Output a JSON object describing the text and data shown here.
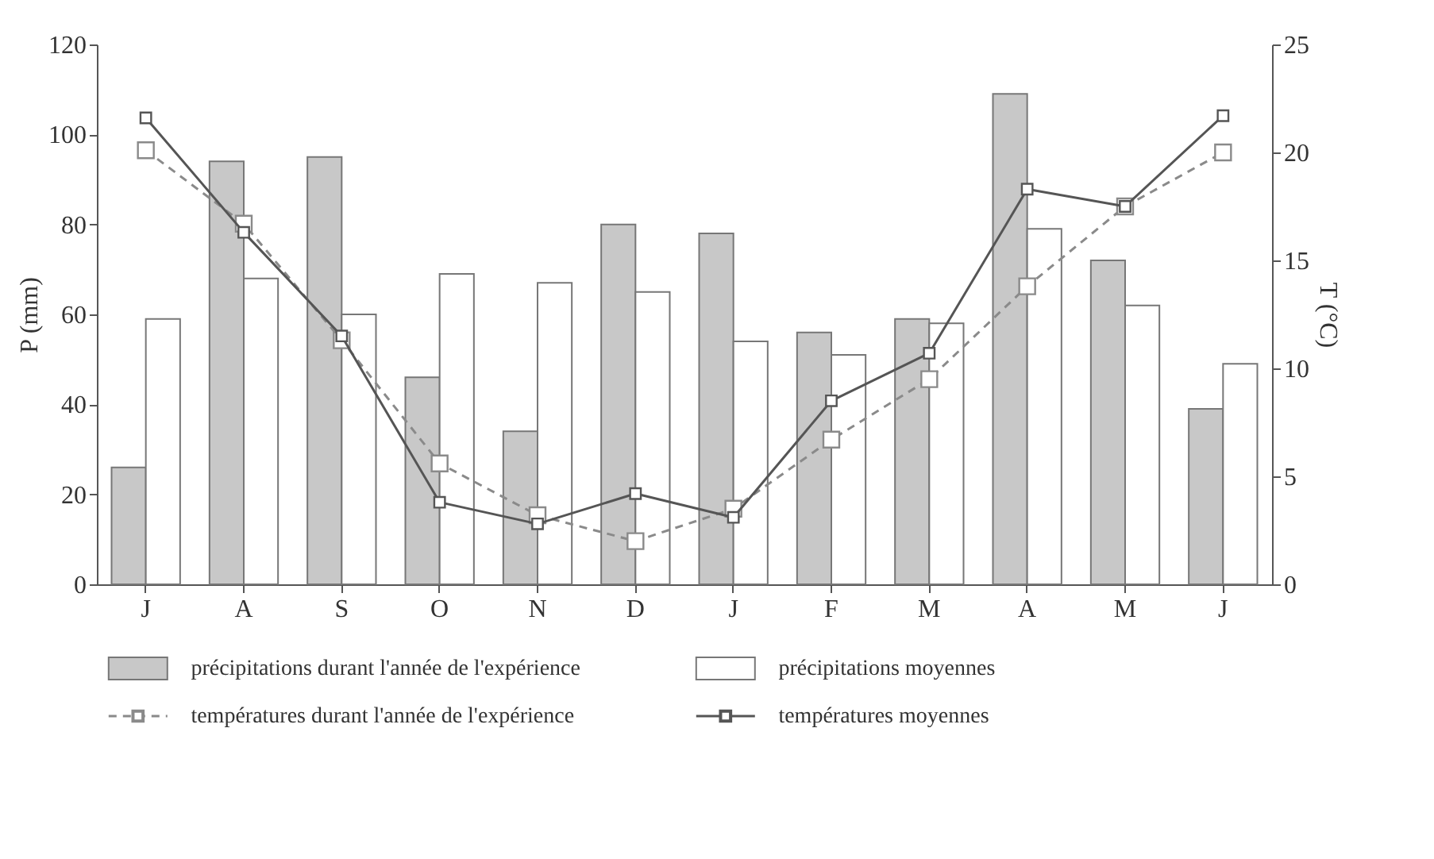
{
  "chart_data": {
    "type": "bar",
    "ylabel": "P (mm)",
    "y2label": "T (°C)",
    "categories": [
      "J",
      "A",
      "S",
      "O",
      "N",
      "D",
      "J",
      "F",
      "M",
      "A",
      "M",
      "J"
    ],
    "series": [
      {
        "name": "précipitations durant l'année de l'expérience",
        "color": "#c8c8c8",
        "values": [
          26,
          94,
          95,
          46,
          34,
          80,
          78,
          56,
          59,
          109,
          72,
          39
        ]
      },
      {
        "name": "précipitations moyennes",
        "color": "#ffffff",
        "values": [
          59,
          68,
          60,
          69,
          67,
          65,
          54,
          51,
          58,
          79,
          62,
          49
        ]
      },
      {
        "name": "températures durant l'année de l'expérience",
        "type": "line",
        "axis": "y2",
        "color": "#8a8a8a",
        "line_style": "dashed",
        "marker": "square",
        "values": [
          20.1,
          16.7,
          11.3,
          5.6,
          3.2,
          2.0,
          3.5,
          6.7,
          9.5,
          13.8,
          17.5,
          20.0
        ]
      },
      {
        "name": "températures moyennes",
        "type": "line",
        "axis": "y2",
        "color": "#555555",
        "line_style": "solid",
        "marker": "square",
        "values": [
          21.6,
          16.3,
          11.5,
          3.8,
          2.8,
          4.2,
          3.1,
          8.5,
          10.7,
          18.3,
          17.5,
          21.7
        ]
      }
    ],
    "ylim": [
      0,
      120
    ],
    "yticks": [
      0,
      20,
      40,
      60,
      80,
      100,
      120
    ],
    "y2lim": [
      0,
      25
    ],
    "y2ticks": [
      0,
      5,
      10,
      15,
      20,
      25
    ],
    "legend": "bottom",
    "grid": false
  }
}
